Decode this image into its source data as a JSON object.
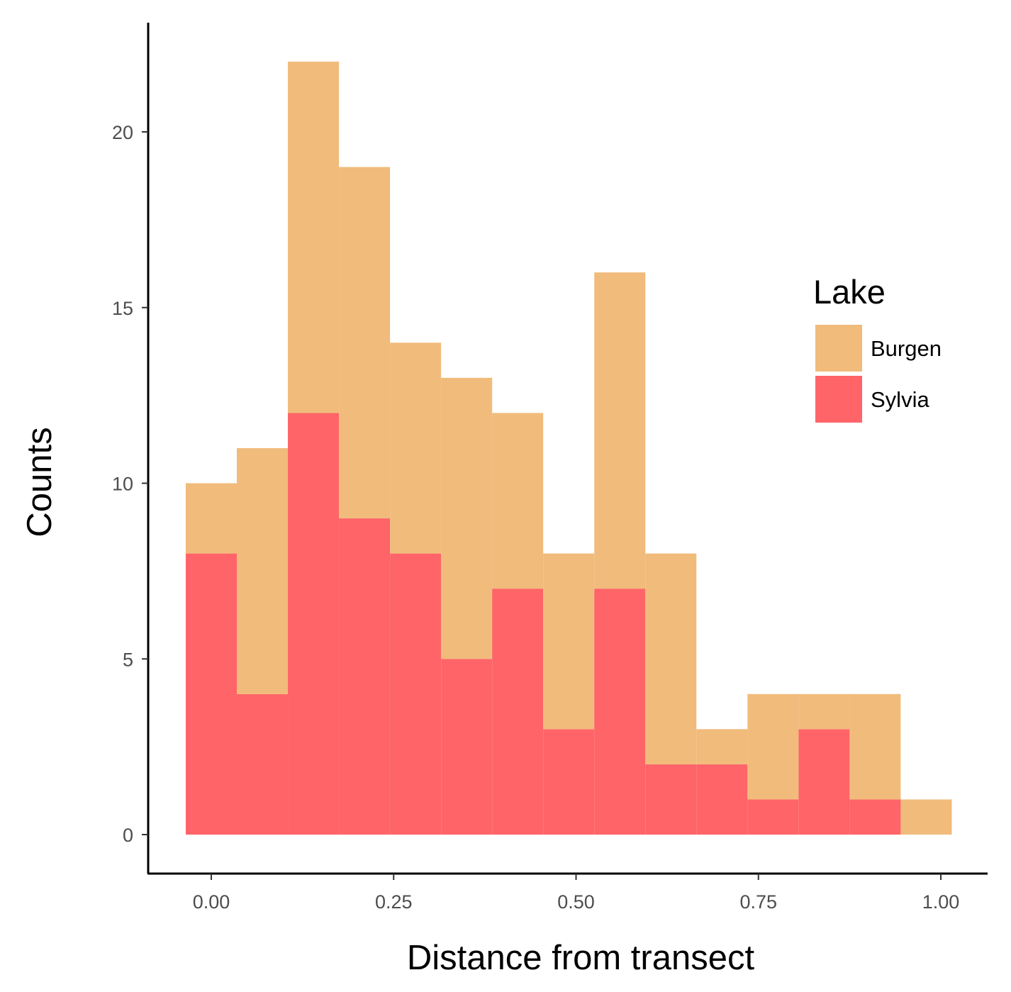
{
  "chart_data": {
    "type": "bar",
    "subtype": "stacked-histogram",
    "xlabel": "Distance from transect",
    "ylabel": "Counts",
    "xlim": [
      -0.05,
      1.05
    ],
    "ylim": [
      -1.1,
      23
    ],
    "x_ticks": [
      {
        "value": 0.0,
        "label": "0.00"
      },
      {
        "value": 0.25,
        "label": "0.25"
      },
      {
        "value": 0.5,
        "label": "0.50"
      },
      {
        "value": 0.75,
        "label": "0.75"
      },
      {
        "value": 1.0,
        "label": "1.00"
      }
    ],
    "y_ticks": [
      {
        "value": 0,
        "label": "0"
      },
      {
        "value": 5,
        "label": "5"
      },
      {
        "value": 10,
        "label": "10"
      },
      {
        "value": 15,
        "label": "15"
      },
      {
        "value": 20,
        "label": "20"
      }
    ],
    "bin_edges": [
      -0.035,
      0.035,
      0.105,
      0.175,
      0.245,
      0.315,
      0.385,
      0.455,
      0.525,
      0.595,
      0.665,
      0.735,
      0.805,
      0.875,
      0.945,
      1.015
    ],
    "series": [
      {
        "name": "Sylvia",
        "color": "#ff6468",
        "values": [
          8,
          4,
          12,
          9,
          8,
          5,
          7,
          3,
          7,
          2,
          2,
          1,
          3,
          1,
          0
        ]
      },
      {
        "name": "Burgen",
        "color": "#f1bb7b",
        "values": [
          2,
          7,
          10,
          10,
          6,
          8,
          5,
          5,
          9,
          6,
          1,
          3,
          1,
          3,
          1
        ]
      }
    ],
    "stacked": true,
    "grid": false,
    "legend": {
      "title": "Lake",
      "placement": "right",
      "entries": [
        {
          "label": "Burgen",
          "color": "#f1bb7b"
        },
        {
          "label": "Sylvia",
          "color": "#ff6468"
        }
      ]
    }
  }
}
